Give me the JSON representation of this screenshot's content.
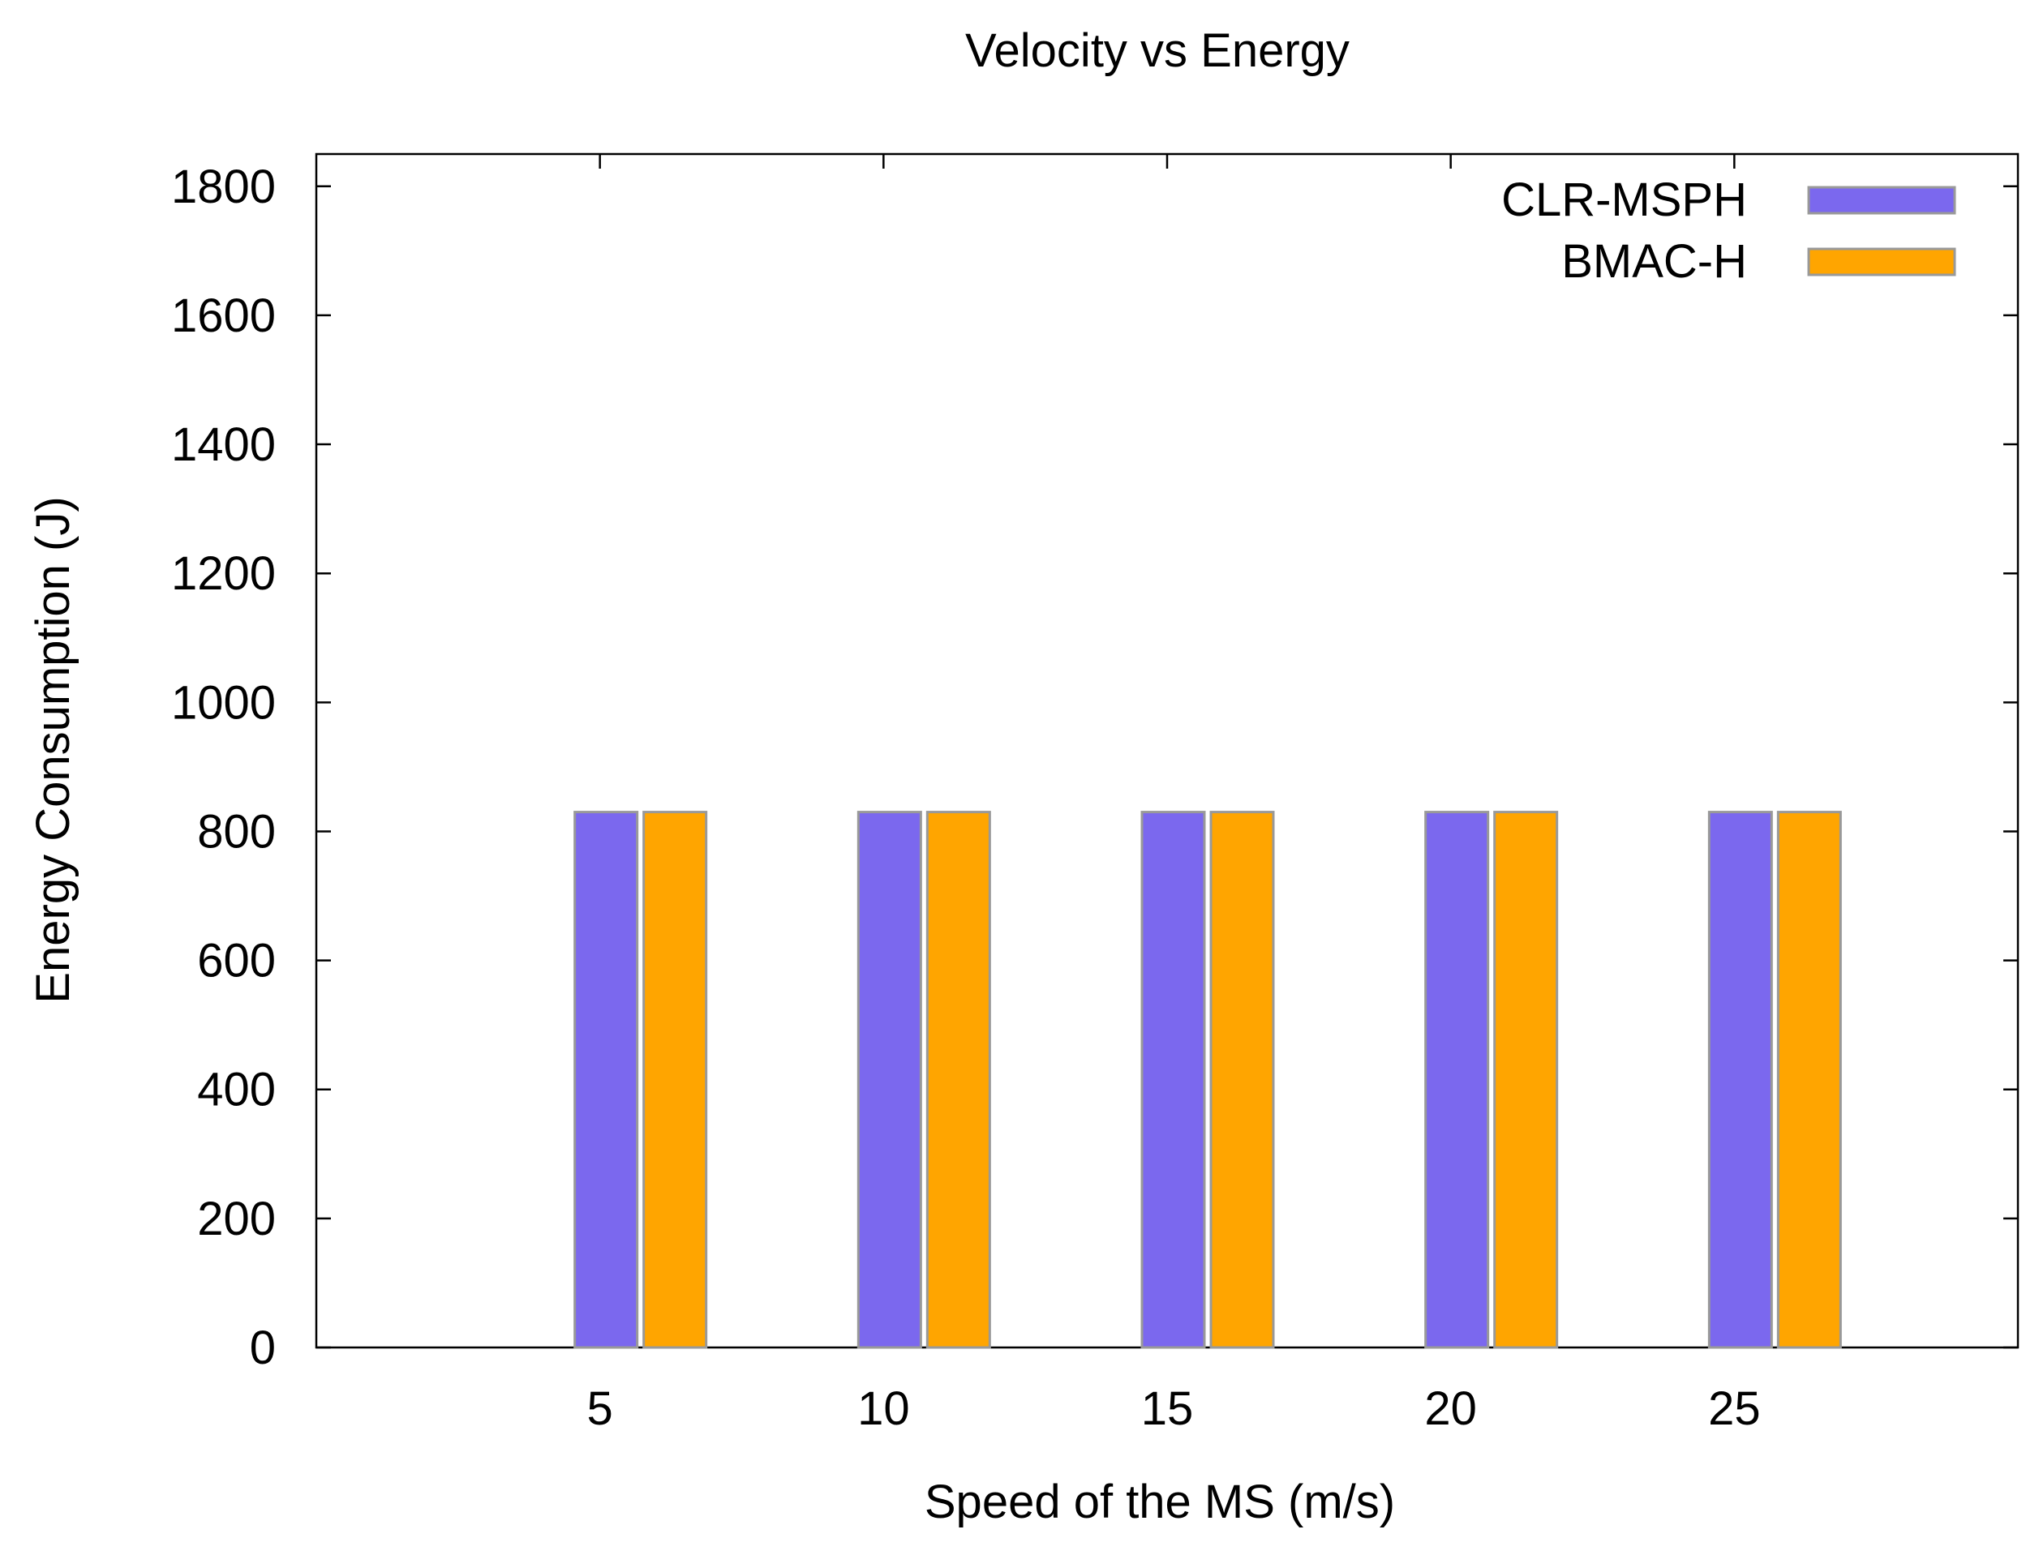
{
  "chart_data": {
    "type": "bar",
    "title": "Velocity vs Energy",
    "xlabel": "Speed of the MS (m/s)",
    "ylabel": "Energy Consumption (J)",
    "categories": [
      "5",
      "10",
      "15",
      "20",
      "25"
    ],
    "series": [
      {
        "name": "CLR-MSPH",
        "values": [
          830,
          830,
          830,
          830,
          830
        ],
        "color": "#7b68ee"
      },
      {
        "name": "BMAC-H",
        "values": [
          830,
          830,
          830,
          830,
          830
        ],
        "color": "#ffa500"
      }
    ],
    "ylim": [
      0,
      1850
    ],
    "yticks": [
      0,
      200,
      400,
      600,
      800,
      1000,
      1200,
      1400,
      1600,
      1800
    ],
    "xlim": [
      0,
      30
    ],
    "xtick_values": [
      5,
      10,
      15,
      20,
      25
    ],
    "grid": false,
    "legend_position": "top-right"
  }
}
